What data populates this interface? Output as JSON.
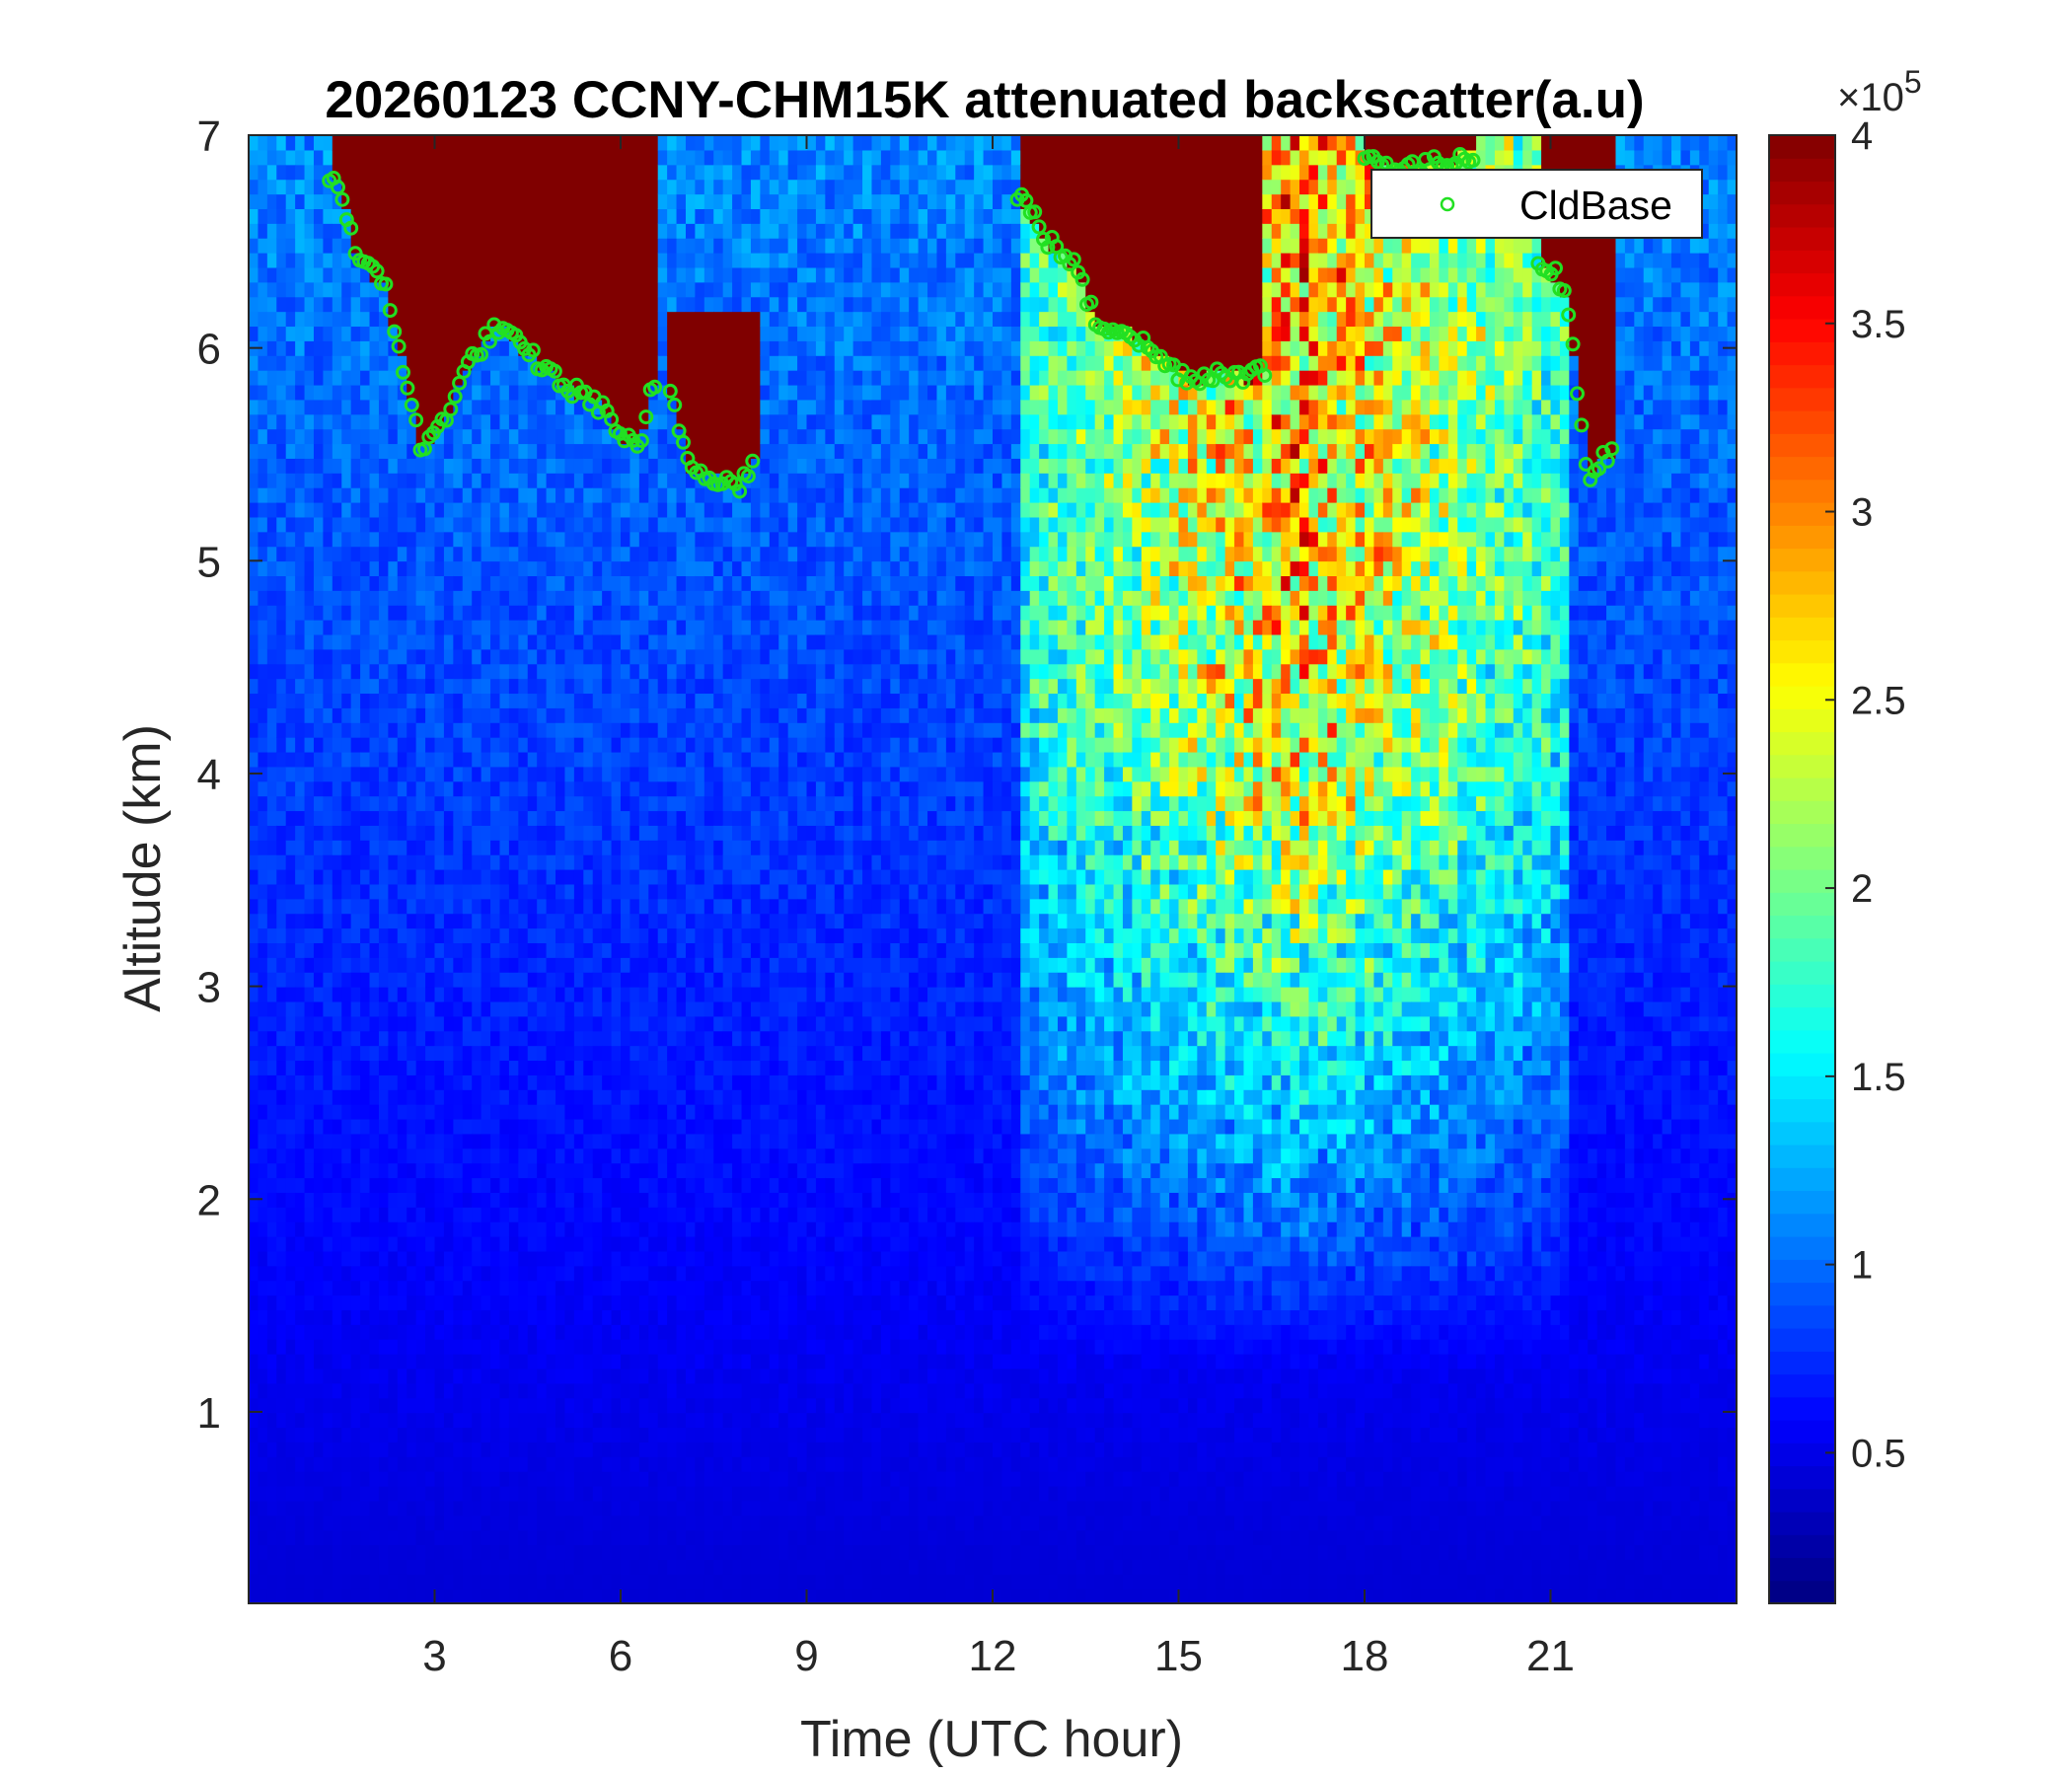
{
  "chart_data": {
    "type": "heatmap",
    "title": "20260123 CCNY-CHM15K attenuated backscatter(a.u)",
    "xlabel": "Time (UTC hour)",
    "ylabel": "Altitude (km)",
    "xlim": [
      0,
      24
    ],
    "ylim": [
      0.1,
      7
    ],
    "x_ticks": [
      3,
      6,
      9,
      12,
      15,
      18,
      21
    ],
    "y_ticks": [
      1,
      2,
      3,
      4,
      5,
      6,
      7
    ],
    "colormap": "jet",
    "colorbar": {
      "clim": [
        0.1,
        4
      ],
      "ticks": [
        0.5,
        1,
        1.5,
        2,
        2.5,
        3,
        3.5,
        4
      ],
      "multiplier": "×10",
      "exponent": "5"
    },
    "legend": {
      "entries": [
        "CldBase"
      ],
      "position": "top-right",
      "marker": "circle",
      "color": "#22e022"
    },
    "cloud_layers": [
      {
        "t_start": 1.3,
        "t_end": 6.6,
        "base_km": [
          [
            1.4,
            6.8
          ],
          [
            1.8,
            6.4
          ],
          [
            2.2,
            6.3
          ],
          [
            2.5,
            5.9
          ],
          [
            2.8,
            5.5
          ],
          [
            3.2,
            5.7
          ],
          [
            3.6,
            5.95
          ],
          [
            4.0,
            6.1
          ],
          [
            4.4,
            6.0
          ],
          [
            4.8,
            5.9
          ],
          [
            5.2,
            5.8
          ],
          [
            5.6,
            5.75
          ],
          [
            6.0,
            5.6
          ],
          [
            6.3,
            5.5
          ],
          [
            6.5,
            5.8
          ]
        ],
        "top_km": 7.0
      },
      {
        "t_start": 6.8,
        "t_end": 8.2,
        "base_km": [
          [
            6.8,
            5.8
          ],
          [
            7.1,
            5.45
          ],
          [
            7.5,
            5.4
          ],
          [
            7.9,
            5.35
          ],
          [
            8.1,
            5.45
          ]
        ],
        "top_km": 6.2
      },
      {
        "t_start": 12.4,
        "t_end": 16.4,
        "base_km": [
          [
            12.5,
            6.7
          ],
          [
            12.9,
            6.5
          ],
          [
            13.3,
            6.4
          ],
          [
            13.7,
            6.1
          ],
          [
            14.1,
            6.1
          ],
          [
            14.5,
            6.0
          ],
          [
            14.9,
            5.9
          ],
          [
            15.3,
            5.85
          ],
          [
            15.7,
            5.9
          ],
          [
            16.1,
            5.85
          ],
          [
            16.3,
            5.9
          ]
        ],
        "top_km": 7.0
      },
      {
        "t_start": 18.0,
        "t_end": 19.8,
        "base_km": [
          [
            18.0,
            6.9
          ],
          [
            18.5,
            6.85
          ],
          [
            19.0,
            6.85
          ],
          [
            19.5,
            6.9
          ]
        ],
        "top_km": 7.0
      },
      {
        "t_start": 20.8,
        "t_end": 22.0,
        "base_km": [
          [
            20.9,
            6.4
          ],
          [
            21.2,
            6.3
          ],
          [
            21.4,
            5.9
          ],
          [
            21.6,
            5.4
          ],
          [
            21.9,
            5.5
          ]
        ],
        "top_km": 7.0
      }
    ],
    "aerosol_bands": [
      {
        "t_start": 12.5,
        "t_end": 21.3,
        "intensity": 0.55
      }
    ]
  }
}
